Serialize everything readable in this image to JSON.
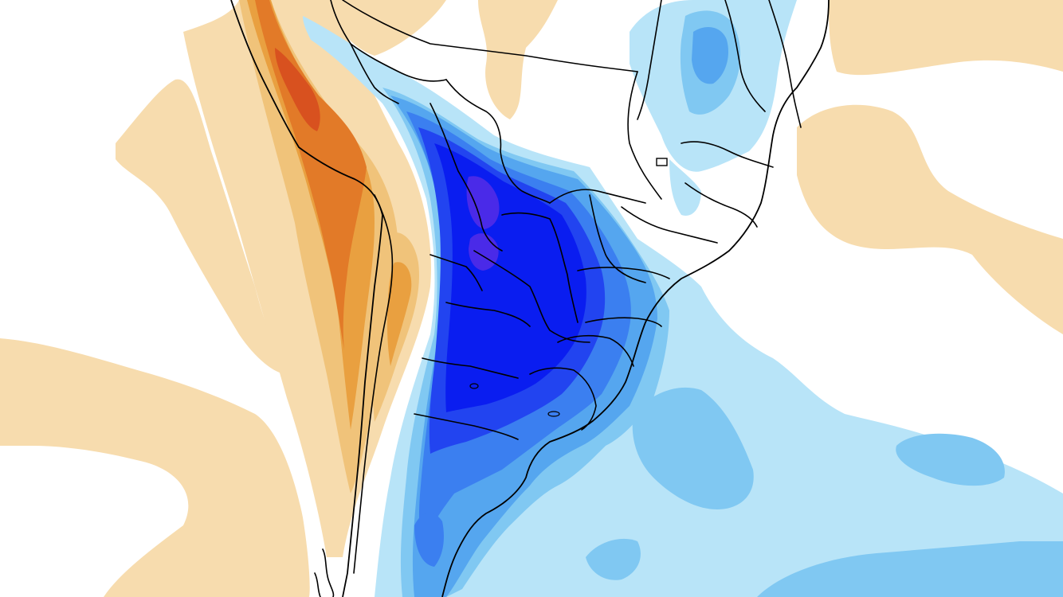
{
  "map": {
    "type": "temperature anomaly field",
    "region": "South America",
    "colors": {
      "background": "#ffffff",
      "warm_1": "#f7dcae",
      "warm_2": "#f0c37a",
      "warm_3": "#e9a040",
      "warm_4": "#e27a28",
      "warm_5": "#d8511f",
      "cool_1": "#b8e4f8",
      "cool_2": "#80c8f2",
      "cool_3": "#55a6ef",
      "cool_4": "#3b7ff0",
      "cool_5": "#2244f0",
      "cool_6": "#0a1df0",
      "cool_7": "#4a2ae8",
      "borders": "#000000"
    }
  }
}
